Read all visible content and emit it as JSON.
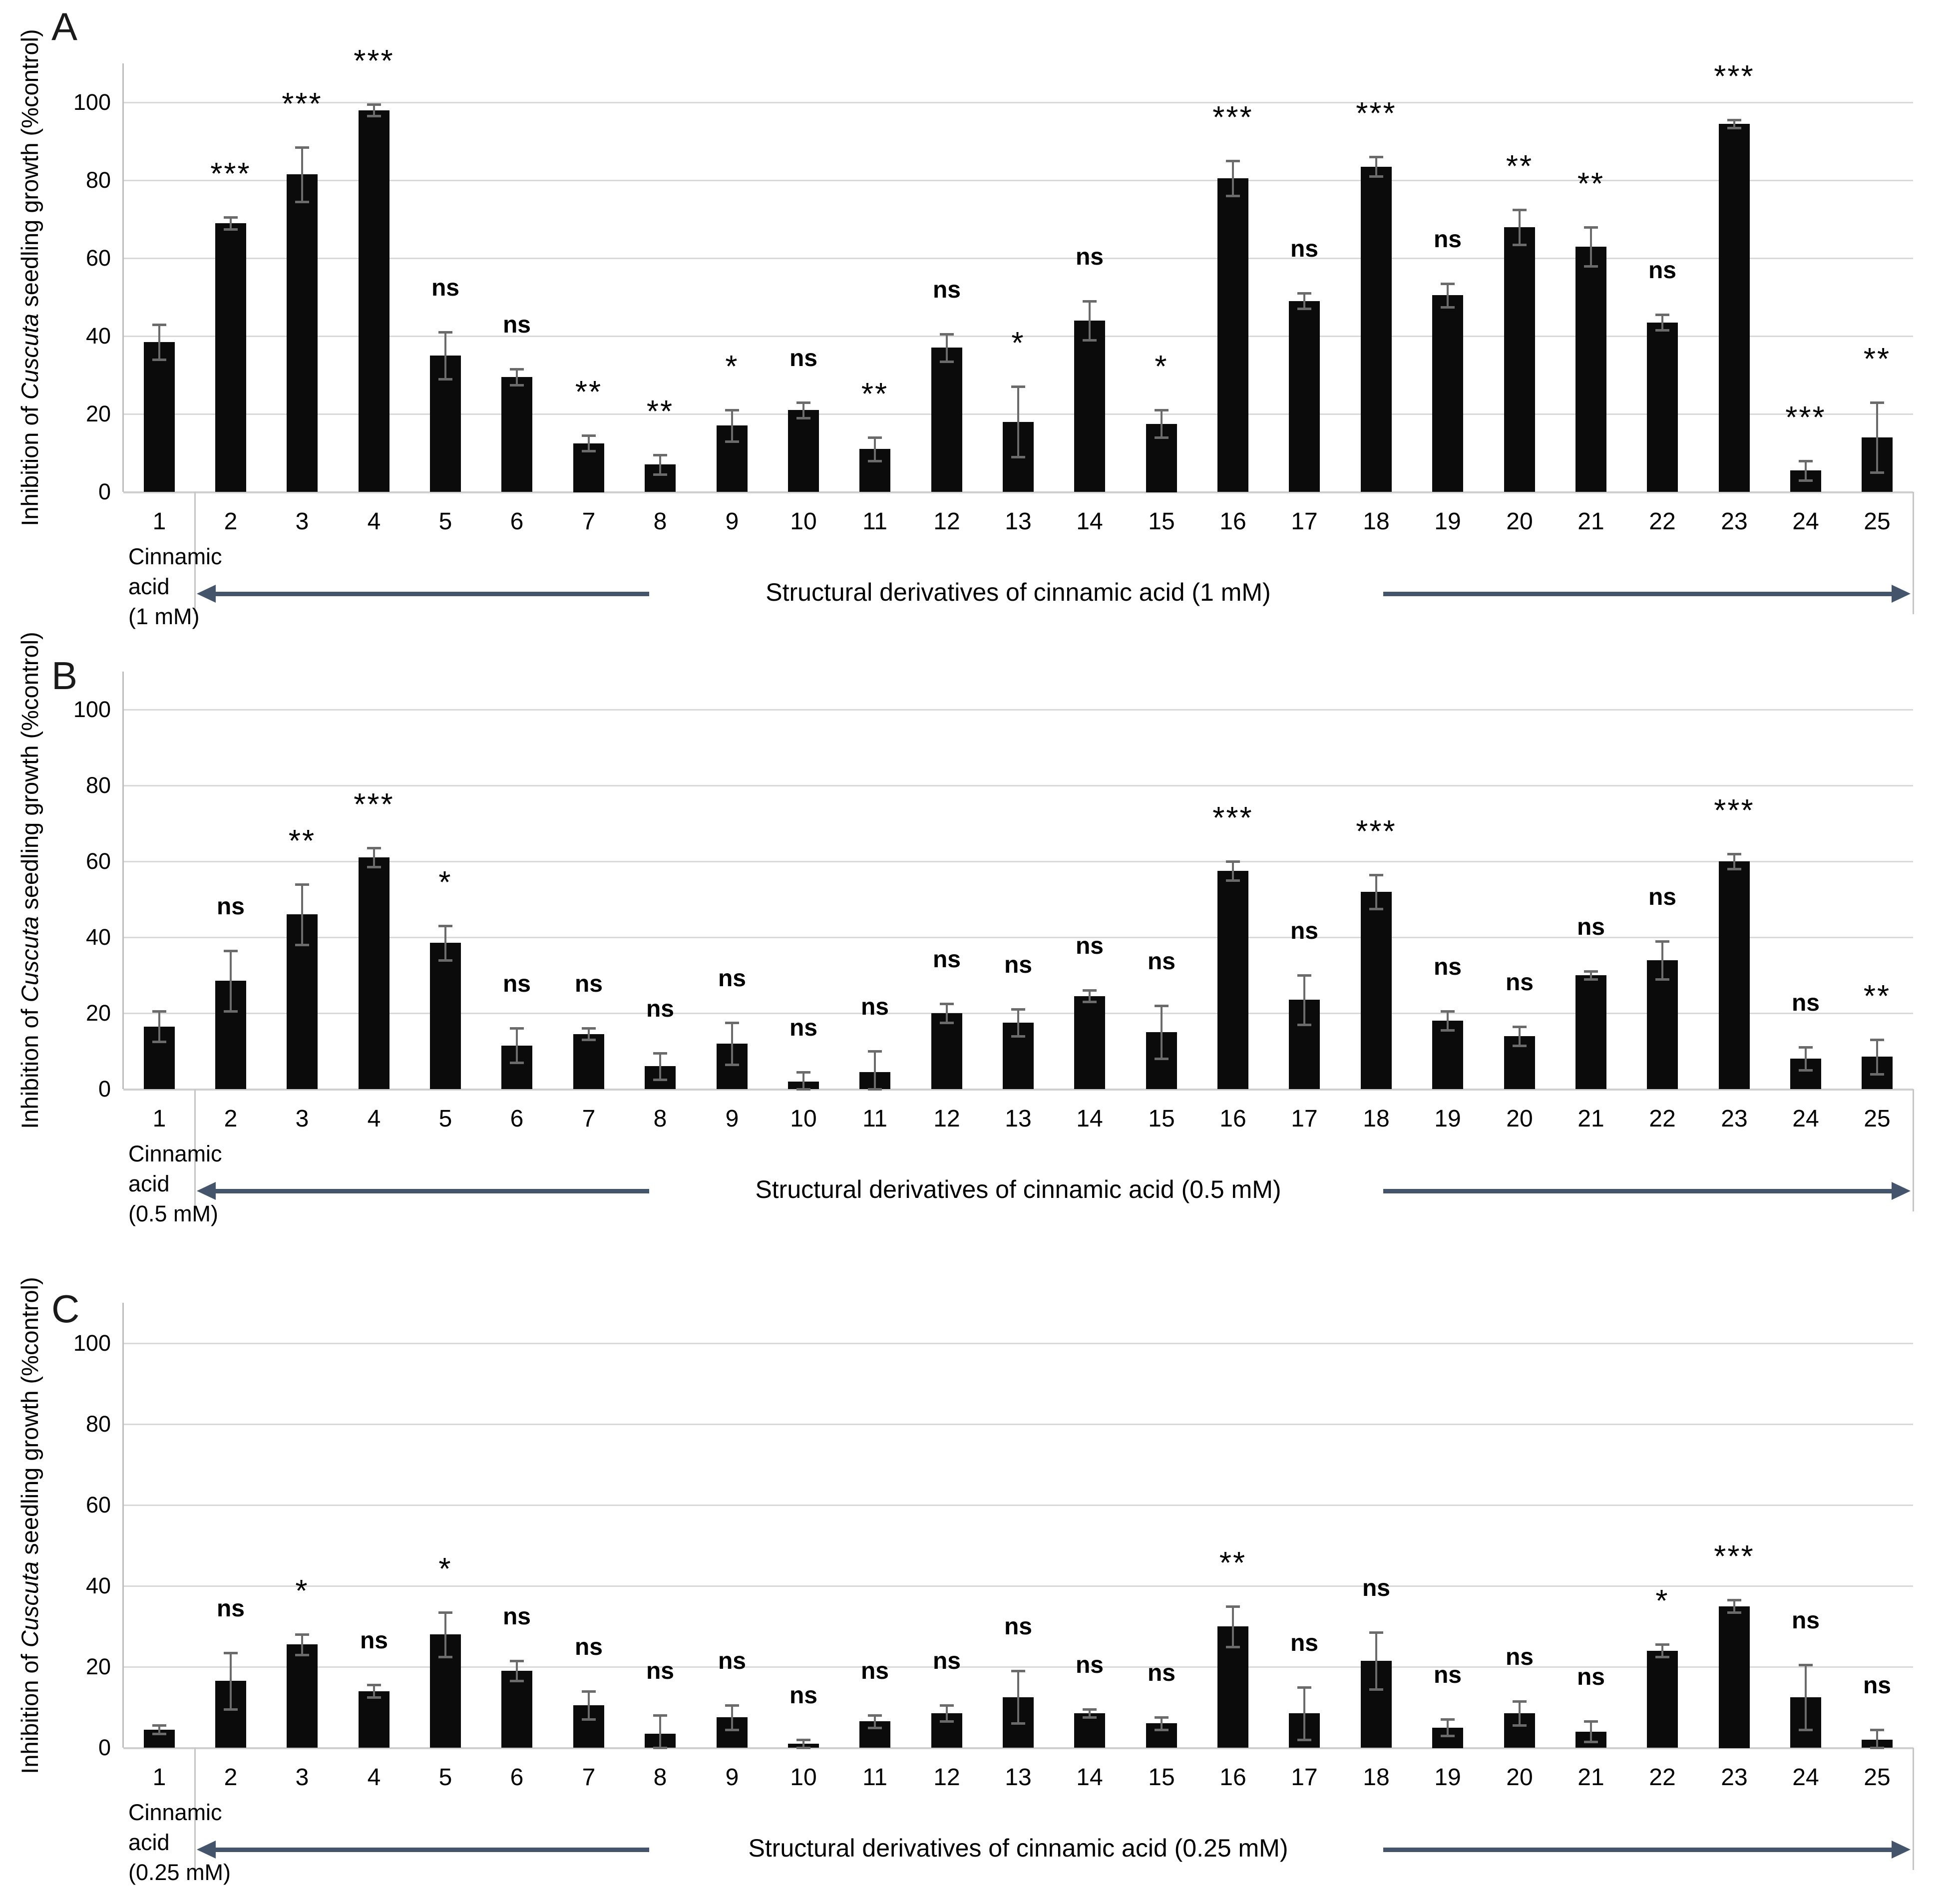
{
  "figure": {
    "colors": {
      "bar": "#0b0b0b",
      "error_bar": "#6b6b6b",
      "gridline": "#d9d9d9",
      "axis": "#bdbdbd",
      "arrow": "#44546a",
      "text": "#000000"
    }
  },
  "chart_data": [
    {
      "type": "bar",
      "panel_label": "A",
      "ylabel": {
        "prefix": "Inhibition of ",
        "italic": "Cuscuta",
        "suffix": " seedling growth (%control)"
      },
      "ylim": [
        0,
        110
      ],
      "yticks": [
        0,
        20,
        40,
        60,
        80,
        100
      ],
      "grid": true,
      "legend_position": "none",
      "categories": [
        "1",
        "2",
        "3",
        "4",
        "5",
        "6",
        "7",
        "8",
        "9",
        "10",
        "11",
        "12",
        "13",
        "14",
        "15",
        "16",
        "17",
        "18",
        "19",
        "20",
        "21",
        "22",
        "23",
        "24",
        "25"
      ],
      "values": [
        38.5,
        69,
        81.5,
        98,
        35,
        29.5,
        12.5,
        7,
        17,
        21,
        11,
        37,
        18,
        44,
        17.5,
        80.5,
        49,
        83.5,
        50.5,
        68,
        63,
        43.5,
        94.5,
        5.5,
        14
      ],
      "errors": [
        4.5,
        1.5,
        7,
        1.5,
        6,
        2,
        2,
        2.5,
        4,
        2,
        3,
        3.5,
        9,
        5,
        3.5,
        4.5,
        2,
        2.5,
        3,
        4.5,
        5,
        2,
        1,
        2.5,
        9
      ],
      "significance": [
        "",
        "***",
        "***",
        "***",
        "ns",
        "ns",
        "**",
        "**",
        "*",
        "ns",
        "**",
        "ns",
        "*",
        "ns",
        "*",
        "***",
        "ns",
        "***",
        "ns",
        "**",
        "**",
        "ns",
        "***",
        "***",
        "**"
      ],
      "control_label_lines": [
        "Cinnamic",
        "acid",
        "(1 mM)"
      ],
      "group_label": "Structural derivatives of cinnamic acid (1 mM)"
    },
    {
      "type": "bar",
      "panel_label": "B",
      "ylabel": {
        "prefix": "Inhibition of ",
        "italic": "Cuscuta",
        "suffix": " seedling growth (%control)"
      },
      "ylim": [
        0,
        110
      ],
      "yticks": [
        0,
        20,
        40,
        60,
        80,
        100
      ],
      "grid": true,
      "legend_position": "none",
      "categories": [
        "1",
        "2",
        "3",
        "4",
        "5",
        "6",
        "7",
        "8",
        "9",
        "10",
        "11",
        "12",
        "13",
        "14",
        "15",
        "16",
        "17",
        "18",
        "19",
        "20",
        "21",
        "22",
        "23",
        "24",
        "25"
      ],
      "values": [
        16.5,
        28.5,
        46,
        61,
        38.5,
        11.5,
        14.5,
        6,
        12,
        2,
        4.5,
        20,
        17.5,
        24.5,
        15,
        57.5,
        23.5,
        52,
        18,
        14,
        30,
        34,
        60,
        8,
        8.5
      ],
      "errors": [
        4,
        8,
        8,
        2.5,
        4.5,
        4.5,
        1.5,
        3.5,
        5.5,
        2.5,
        5.5,
        2.5,
        3.5,
        1.5,
        7,
        2.5,
        6.5,
        4.5,
        2.5,
        2.5,
        1,
        5,
        2,
        3,
        4.5
      ],
      "significance": [
        "",
        "ns",
        "**",
        "***",
        "*",
        "ns",
        "ns",
        "ns",
        "ns",
        "ns",
        "ns",
        "ns",
        "ns",
        "ns",
        "ns",
        "***",
        "ns",
        "***",
        "ns",
        "ns",
        "ns",
        "ns",
        "***",
        "ns",
        "**"
      ],
      "control_label_lines": [
        "Cinnamic",
        "acid",
        "(0.5 mM)"
      ],
      "group_label": "Structural derivatives of cinnamic acid (0.5 mM)"
    },
    {
      "type": "bar",
      "panel_label": "C",
      "ylabel": {
        "prefix": "Inhibition of ",
        "italic": "Cuscuta",
        "suffix": " seedling growth (%control)"
      },
      "ylim": [
        0,
        110
      ],
      "yticks": [
        0,
        20,
        40,
        60,
        80,
        100
      ],
      "grid": true,
      "legend_position": "none",
      "categories": [
        "1",
        "2",
        "3",
        "4",
        "5",
        "6",
        "7",
        "8",
        "9",
        "10",
        "11",
        "12",
        "13",
        "14",
        "15",
        "16",
        "17",
        "18",
        "19",
        "20",
        "21",
        "22",
        "23",
        "24",
        "25"
      ],
      "values": [
        4.5,
        16.5,
        25.5,
        14,
        28,
        19,
        10.5,
        3.5,
        7.5,
        1,
        6.5,
        8.5,
        12.5,
        8.5,
        6,
        30,
        8.5,
        21.5,
        5,
        8.5,
        4,
        24,
        35,
        12.5,
        2
      ],
      "errors": [
        1,
        7,
        2.5,
        1.5,
        5.5,
        2.5,
        3.5,
        4.5,
        3,
        1,
        1.5,
        2,
        6.5,
        1,
        1.5,
        5,
        6.5,
        7,
        2,
        3,
        2.5,
        1.5,
        1.5,
        8,
        2.5
      ],
      "significance": [
        "",
        "ns",
        "*",
        "ns",
        "*",
        "ns",
        "ns",
        "ns",
        "ns",
        "ns",
        "ns",
        "ns",
        "ns",
        "ns",
        "ns",
        "**",
        "ns",
        "ns",
        "ns",
        "ns",
        "ns",
        "*",
        "***",
        "ns",
        "ns"
      ],
      "control_label_lines": [
        "Cinnamic",
        "acid",
        "(0.25 mM)"
      ],
      "group_label": "Structural derivatives of cinnamic acid (0.25 mM)"
    }
  ]
}
